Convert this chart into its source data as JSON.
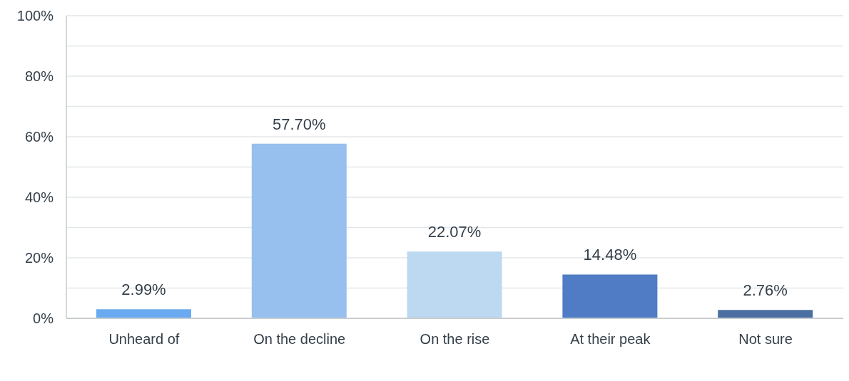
{
  "chart_data": {
    "type": "bar",
    "categories": [
      "Unheard of",
      "On the decline",
      "On the rise",
      "At their peak",
      "Not sure"
    ],
    "values": [
      2.99,
      57.7,
      22.07,
      14.48,
      2.76
    ],
    "colors": [
      "#6aaaf0",
      "#97c0ee",
      "#bdd8f1",
      "#4f7cc4",
      "#4a6fa0"
    ],
    "value_labels": [
      "2.99%",
      "57.70%",
      "22.07%",
      "14.48%",
      "2.76%"
    ],
    "ylim": [
      0,
      100
    ],
    "yticks": [
      {
        "value": 0,
        "label": "0%"
      },
      {
        "value": 10,
        "label": null
      },
      {
        "value": 20,
        "label": "20%"
      },
      {
        "value": 30,
        "label": null
      },
      {
        "value": 40,
        "label": "40%"
      },
      {
        "value": 50,
        "label": null
      },
      {
        "value": 60,
        "label": "60%"
      },
      {
        "value": 70,
        "label": null
      },
      {
        "value": 80,
        "label": "80%"
      },
      {
        "value": 90,
        "label": null
      },
      {
        "value": 100,
        "label": "100%"
      }
    ],
    "grid": "y"
  }
}
